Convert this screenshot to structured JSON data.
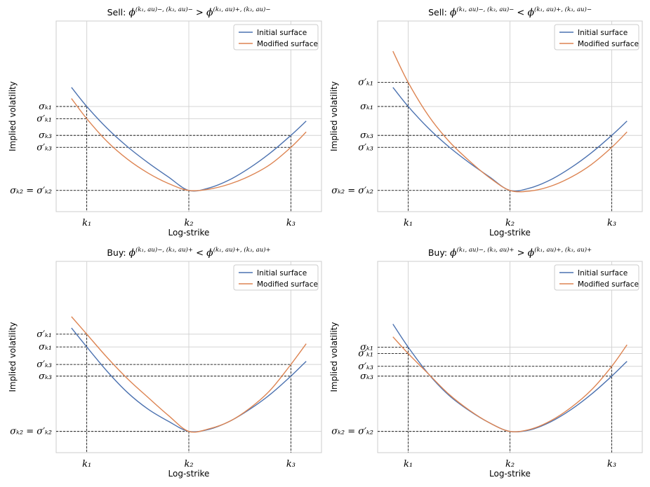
{
  "colors": {
    "initial": "#4c72b0",
    "modified": "#dd8452"
  },
  "legend": {
    "initial_label": "Initial surface",
    "modified_label": "Modified surface"
  },
  "chart_data": [
    {
      "type": "line",
      "title": "Sell: ϕ^{(k1,au)−,(k3,au)−} > ϕ^{(k1,au)+,(k3,au)−}",
      "title_prefix": "Sell: ",
      "title_lhs": "ϕ",
      "title_lhs_sup": "(k₁, au)−, (k₃, au)−",
      "title_op": " > ",
      "title_rhs": "ϕ",
      "title_rhs_sup": "(k₁, au)+, (k₃, au)−",
      "xlabel": "Log-strike",
      "ylabel": "Implied volatility",
      "xlim": [
        -1.3,
        1.3
      ],
      "ylim": [
        0.1,
        0.46
      ],
      "x_ticks": [
        {
          "value": -1.0,
          "label": "k₁"
        },
        {
          "value": 0.0,
          "label": "k₂"
        },
        {
          "value": 1.0,
          "label": "k₃"
        }
      ],
      "y_ticks": [
        {
          "value": 0.2986,
          "label": "σₖ₁",
          "guide": "k1"
        },
        {
          "value": 0.2755,
          "label": "σ′ₖ₁",
          "guide": "k1"
        },
        {
          "value": 0.244,
          "label": "σₖ₃",
          "guide": "k3"
        },
        {
          "value": 0.2214,
          "label": "σ′ₖ₃",
          "guide": "k3"
        },
        {
          "value": 0.14,
          "label": "σₖ₂ = σ′ₖ₂",
          "guide": "k2"
        }
      ],
      "series": [
        {
          "name": "Initial surface",
          "key": "initial",
          "x": [
            -1.15,
            -1.0,
            -0.8,
            -0.6,
            -0.4,
            -0.2,
            0.0,
            0.2,
            0.4,
            0.6,
            0.8,
            1.0,
            1.15
          ],
          "y": [
            0.3347,
            0.2986,
            0.2573,
            0.2224,
            0.1924,
            0.1654,
            0.14,
            0.1448,
            0.1602,
            0.1831,
            0.2111,
            0.244,
            0.271
          ]
        },
        {
          "name": "Modified surface",
          "key": "modified",
          "x": [
            -1.15,
            -1.0,
            -0.8,
            -0.6,
            -0.4,
            -0.2,
            0.0,
            0.2,
            0.4,
            0.6,
            0.8,
            1.0,
            1.15
          ],
          "y": [
            0.3137,
            0.2755,
            0.2323,
            0.1988,
            0.1729,
            0.1531,
            0.14,
            0.1425,
            0.1521,
            0.1676,
            0.1894,
            0.2214,
            0.2505
          ]
        }
      ]
    },
    {
      "type": "line",
      "title": "Sell: ϕ^{(k1,au)−,(k3,au)−} < ϕ^{(k1,au)+,(k3,au)−}",
      "title_prefix": "Sell: ",
      "title_lhs": "ϕ",
      "title_lhs_sup": "(k₁, au)−, (k₃, au)−",
      "title_op": " < ",
      "title_rhs": "ϕ",
      "title_rhs_sup": "(k₁, au)+, (k₃, au)−",
      "xlabel": "Log-strike",
      "ylabel": "Implied volatility",
      "xlim": [
        -1.3,
        1.3
      ],
      "ylim": [
        0.1,
        0.46
      ],
      "x_ticks": [
        {
          "value": -1.0,
          "label": "k₁"
        },
        {
          "value": 0.0,
          "label": "k₂"
        },
        {
          "value": 1.0,
          "label": "k₃"
        }
      ],
      "y_ticks": [
        {
          "value": 0.344,
          "label": "σ′ₖ₁",
          "guide": "k1"
        },
        {
          "value": 0.2986,
          "label": "σₖ₁",
          "guide": "k1"
        },
        {
          "value": 0.244,
          "label": "σₖ₃",
          "guide": "k3"
        },
        {
          "value": 0.2214,
          "label": "σ′ₖ₃",
          "guide": "k3"
        },
        {
          "value": 0.14,
          "label": "σₖ₂ = σ′ₖ₂",
          "guide": "k2"
        }
      ],
      "series": [
        {
          "name": "Initial surface",
          "key": "initial",
          "x": [
            -1.15,
            -1.0,
            -0.8,
            -0.6,
            -0.4,
            -0.2,
            0.0,
            0.2,
            0.4,
            0.6,
            0.8,
            1.0,
            1.15
          ],
          "y": [
            0.3347,
            0.2986,
            0.2573,
            0.2224,
            0.1924,
            0.1654,
            0.14,
            0.1448,
            0.1602,
            0.1831,
            0.2111,
            0.244,
            0.271
          ]
        },
        {
          "name": "Modified surface",
          "key": "modified",
          "x": [
            -1.15,
            -1.0,
            -0.8,
            -0.6,
            -0.4,
            -0.2,
            0.0,
            0.2,
            0.4,
            0.6,
            0.8,
            1.0,
            1.15
          ],
          "y": [
            0.403,
            0.344,
            0.281,
            0.233,
            0.196,
            0.164,
            0.14,
            0.139,
            0.148,
            0.165,
            0.189,
            0.2214,
            0.2505
          ]
        }
      ]
    },
    {
      "type": "line",
      "title": "Buy: ϕ^{(k1,au)−,(k3,au)+} < ϕ^{(k1,au)+,(k3,au)+}",
      "title_prefix": "Buy: ",
      "title_lhs": "ϕ",
      "title_lhs_sup": "(k₁, au)−, (k₃, au)+",
      "title_op": " < ",
      "title_rhs": "ϕ",
      "title_rhs_sup": "(k₁, au)+, (k₃, au)+",
      "xlabel": "Log-strike",
      "ylabel": "Implied volatility",
      "xlim": [
        -1.3,
        1.3
      ],
      "ylim": [
        0.1,
        0.46
      ],
      "x_ticks": [
        {
          "value": -1.0,
          "label": "k₁"
        },
        {
          "value": 0.0,
          "label": "k₂"
        },
        {
          "value": 1.0,
          "label": "k₃"
        }
      ],
      "y_ticks": [
        {
          "value": 0.323,
          "label": "σ′ₖ₁",
          "guide": "k1"
        },
        {
          "value": 0.299,
          "label": "σₖ₁",
          "guide": "k1"
        },
        {
          "value": 0.266,
          "label": "σ′ₖ₃",
          "guide": "k3"
        },
        {
          "value": 0.244,
          "label": "σₖ₃",
          "guide": "k3"
        },
        {
          "value": 0.14,
          "label": "σₖ₂ = σ′ₖ₂",
          "guide": "k2"
        }
      ],
      "series": [
        {
          "name": "Initial surface",
          "key": "initial",
          "x": [
            -1.15,
            -1.0,
            -0.8,
            -0.6,
            -0.4,
            -0.2,
            0.0,
            0.2,
            0.4,
            0.6,
            0.8,
            1.0,
            1.15
          ],
          "y": [
            0.3347,
            0.299,
            0.253,
            0.213,
            0.182,
            0.159,
            0.14,
            0.144,
            0.159,
            0.182,
            0.21,
            0.244,
            0.272
          ]
        },
        {
          "name": "Modified surface",
          "key": "modified",
          "x": [
            -1.15,
            -1.0,
            -0.8,
            -0.6,
            -0.4,
            -0.2,
            0.0,
            0.2,
            0.4,
            0.6,
            0.8,
            1.0,
            1.15
          ],
          "y": [
            0.356,
            0.323,
            0.279,
            0.239,
            0.204,
            0.17,
            0.14,
            0.145,
            0.159,
            0.184,
            0.218,
            0.266,
            0.305
          ]
        }
      ]
    },
    {
      "type": "line",
      "title": "Buy: ϕ^{(k1,au)−,(k3,au)+} > ϕ^{(k1,au)+,(k3,au)+}",
      "title_prefix": "Buy: ",
      "title_lhs": "ϕ",
      "title_lhs_sup": "(k₁, au)−, (k₃, au)+",
      "title_op": " > ",
      "title_rhs": "ϕ",
      "title_rhs_sup": "(k₁, au)+, (k₃, au)+",
      "xlabel": "Log-strike",
      "ylabel": "Implied volatility",
      "xlim": [
        -1.3,
        1.3
      ],
      "ylim": [
        0.1,
        0.46
      ],
      "x_ticks": [
        {
          "value": -1.0,
          "label": "k₁"
        },
        {
          "value": 0.0,
          "label": "k₂"
        },
        {
          "value": 1.0,
          "label": "k₃"
        }
      ],
      "y_ticks": [
        {
          "value": 0.2986,
          "label": "σₖ₁",
          "guide": "k1"
        },
        {
          "value": 0.2866,
          "label": "σ′ₖ₁",
          "guide": "k1"
        },
        {
          "value": 0.2625,
          "label": "σ′ₖ₃",
          "guide": "k3"
        },
        {
          "value": 0.244,
          "label": "σₖ₃",
          "guide": "k3"
        },
        {
          "value": 0.14,
          "label": "σₖ₂ = σ′ₖ₂",
          "guide": "k2"
        }
      ],
      "series": [
        {
          "name": "Initial surface",
          "key": "initial",
          "x": [
            -1.15,
            -1.0,
            -0.8,
            -0.6,
            -0.4,
            -0.2,
            0.0,
            0.2,
            0.4,
            0.6,
            0.8,
            1.0,
            1.15
          ],
          "y": [
            0.342,
            0.2986,
            0.248,
            0.208,
            0.179,
            0.156,
            0.14,
            0.143,
            0.158,
            0.181,
            0.21,
            0.244,
            0.272
          ]
        },
        {
          "name": "Modified surface",
          "key": "modified",
          "x": [
            -1.15,
            -1.0,
            -0.8,
            -0.6,
            -0.4,
            -0.2,
            0.0,
            0.2,
            0.4,
            0.6,
            0.8,
            1.0,
            1.15
          ],
          "y": [
            0.318,
            0.2866,
            0.248,
            0.21,
            0.18,
            0.156,
            0.14,
            0.144,
            0.16,
            0.185,
            0.218,
            0.2625,
            0.303
          ]
        }
      ]
    }
  ]
}
